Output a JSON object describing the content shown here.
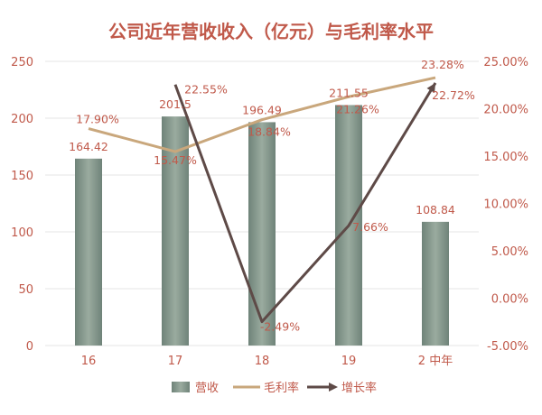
{
  "chart_data": {
    "type": "bar",
    "title": "公司近年营收收入（亿元）与毛利率水平",
    "categories": [
      "16",
      "17",
      "18",
      "19",
      "2 中年"
    ],
    "left_axis": {
      "ylim": [
        0,
        250
      ],
      "ticks": [
        "0",
        "50",
        "100",
        "150",
        "200",
        "250"
      ]
    },
    "right_axis": {
      "ylim": [
        -5,
        25
      ],
      "ticks": [
        "-5.00%",
        "0.00%",
        "5.00%",
        "10.00%",
        "15.00%",
        "20.00%",
        "25.00%"
      ]
    },
    "series": [
      {
        "name": "营收",
        "kind": "bar",
        "axis": "left",
        "values": [
          164.42,
          201.5,
          196.49,
          211.55,
          108.84
        ],
        "labels": [
          "164.42",
          "201.5",
          "196.49",
          "211.55",
          "108.84"
        ]
      },
      {
        "name": "毛利率",
        "kind": "line",
        "axis": "right",
        "values": [
          17.9,
          15.47,
          18.84,
          21.26,
          23.28
        ],
        "labels": [
          "17.90%",
          "15.47%",
          "18.84%",
          "21.26%",
          "23.28%"
        ]
      },
      {
        "name": "增长率",
        "kind": "line",
        "axis": "right",
        "values": [
          null,
          22.55,
          -2.49,
          7.66,
          22.72
        ],
        "labels": [
          null,
          "22.55%",
          "-2.49%",
          "7.66%",
          "22.72%"
        ]
      }
    ],
    "grid": true,
    "legend_position": "bottom"
  },
  "colors": {
    "bar": "#8a9c92",
    "margin_line": "#c9a77c",
    "growth_line": "#5e4a47",
    "text": "#c0594a",
    "grid": "#e4e4e4"
  }
}
